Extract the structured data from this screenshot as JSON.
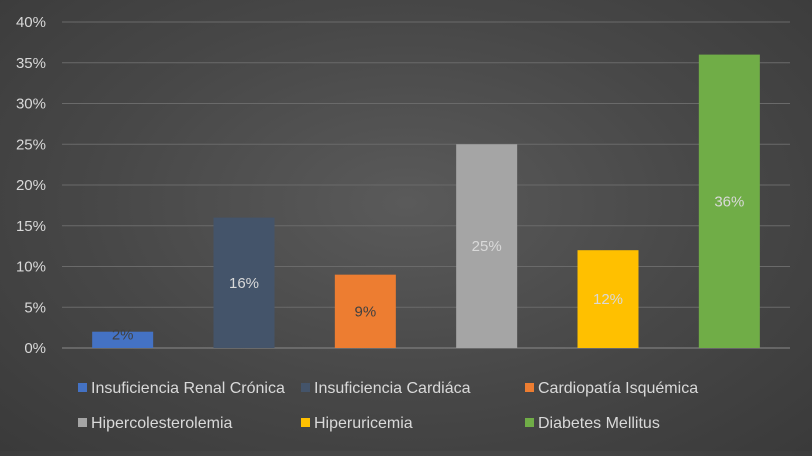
{
  "chart_data": {
    "type": "bar",
    "title": "",
    "xlabel": "",
    "ylabel": "",
    "ylim": [
      0,
      0.4
    ],
    "y_ticks": [
      "0%",
      "5%",
      "10%",
      "15%",
      "20%",
      "25%",
      "30%",
      "35%",
      "40%"
    ],
    "grid": true,
    "legend_position": "bottom",
    "categories": [
      "Insuficiencia Renal Crónica",
      "Insuficiencia Cardiáca",
      "Cardiopatía Isquémica",
      "Hipercolesterolemia",
      "Hiperuricemia",
      "Diabetes Mellitus"
    ],
    "values": [
      0.02,
      0.16,
      0.09,
      0.25,
      0.12,
      0.36
    ],
    "data_labels": [
      "2%",
      "16%",
      "9%",
      "25%",
      "12%",
      "36%"
    ],
    "colors": [
      "#4472c4",
      "#44546a",
      "#ed7d31",
      "#a5a5a5",
      "#ffc000",
      "#70ad47"
    ],
    "label_colors": [
      "#404040",
      "#d9d9d9",
      "#404040",
      "#d9d9d9",
      "#d9d9d9",
      "#d9d9d9"
    ]
  }
}
